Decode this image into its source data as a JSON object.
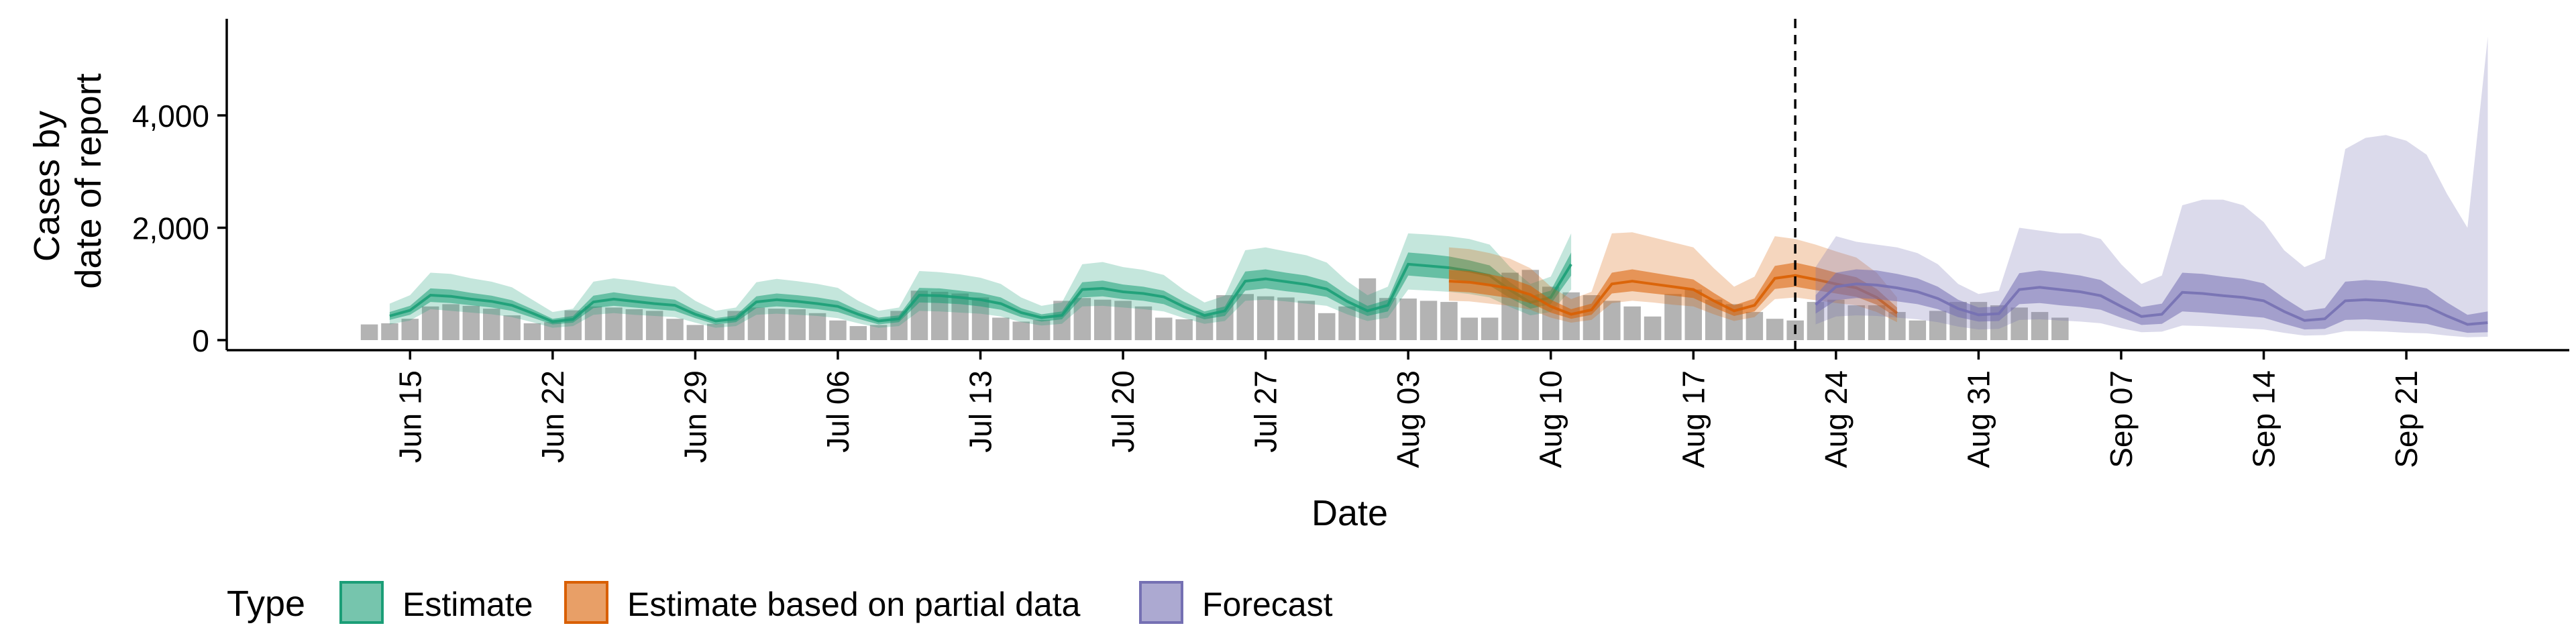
{
  "chart_data": {
    "type": "area",
    "xlabel": "Date",
    "ylabel_lines": [
      "Cases by",
      "date of report"
    ],
    "x_start": "2020-06-13",
    "x_end": "2020-09-22",
    "xlim": [
      "2020-06-06",
      "2020-09-29"
    ],
    "ylim": [
      0,
      5800
    ],
    "x_ticks": [
      {
        "date": "2020-06-15",
        "label": "Jun 15"
      },
      {
        "date": "2020-06-22",
        "label": "Jun 22"
      },
      {
        "date": "2020-06-29",
        "label": "Jun 29"
      },
      {
        "date": "2020-07-06",
        "label": "Jul 06"
      },
      {
        "date": "2020-07-13",
        "label": "Jul 13"
      },
      {
        "date": "2020-07-20",
        "label": "Jul 20"
      },
      {
        "date": "2020-07-27",
        "label": "Jul 27"
      },
      {
        "date": "2020-08-03",
        "label": "Aug 03"
      },
      {
        "date": "2020-08-10",
        "label": "Aug 10"
      },
      {
        "date": "2020-08-17",
        "label": "Aug 17"
      },
      {
        "date": "2020-08-24",
        "label": "Aug 24"
      },
      {
        "date": "2020-08-31",
        "label": "Aug 31"
      },
      {
        "date": "2020-09-07",
        "label": "Sep 07"
      },
      {
        "date": "2020-09-14",
        "label": "Sep 14"
      },
      {
        "date": "2020-09-21",
        "label": "Sep 21"
      }
    ],
    "y_ticks": [
      {
        "value": 0,
        "label": "0"
      },
      {
        "value": 2000,
        "label": "2,000"
      },
      {
        "value": 4000,
        "label": "4,000"
      }
    ],
    "forecast_start_line": "2020-08-22",
    "legend": {
      "title": "Type",
      "placement": "bottom",
      "items": [
        {
          "key": "estimate",
          "label": "Estimate",
          "color": "#1b9e77"
        },
        {
          "key": "partial",
          "label": "Estimate based on partial data",
          "color": "#d95f02"
        },
        {
          "key": "forecast",
          "label": "Forecast",
          "color": "#7570b3"
        }
      ]
    },
    "bar_color": "#b3b3b3",
    "reported_cases": [
      280,
      300,
      380,
      600,
      640,
      610,
      560,
      440,
      300,
      320,
      530,
      600,
      580,
      550,
      520,
      380,
      270,
      290,
      520,
      580,
      560,
      550,
      480,
      350,
      250,
      270,
      520,
      880,
      860,
      830,
      760,
      400,
      330,
      360,
      700,
      750,
      720,
      700,
      600,
      400,
      370,
      440,
      800,
      820,
      780,
      760,
      700,
      480,
      600,
      1100,
      750,
      740,
      700,
      680,
      400,
      400,
      1200,
      1250,
      950,
      850,
      800,
      700,
      600,
      420,
      820,
      900,
      720,
      640,
      500,
      380,
      350,
      680,
      720,
      620,
      620,
      500,
      350,
      520,
      680,
      680,
      620,
      580,
      500,
      400
    ],
    "series": [
      {
        "name": "Estimate",
        "start": "2020-06-14",
        "color": "#1b9e77",
        "median": [
          430,
          530,
          800,
          780,
          730,
          690,
          620,
          480,
          330,
          370,
          680,
          730,
          690,
          650,
          620,
          460,
          340,
          380,
          680,
          720,
          690,
          650,
          600,
          460,
          340,
          380,
          800,
          790,
          760,
          720,
          650,
          490,
          400,
          440,
          900,
          920,
          860,
          830,
          770,
          590,
          440,
          520,
          1050,
          1090,
          1040,
          990,
          910,
          690,
          520,
          620,
          1350,
          1320,
          1290,
          1230,
          1150,
          890,
          670,
          760,
          1350
        ],
        "lower50": [
          360,
          450,
          680,
          660,
          620,
          580,
          520,
          400,
          280,
          310,
          570,
          610,
          580,
          550,
          520,
          390,
          280,
          320,
          570,
          600,
          580,
          550,
          500,
          380,
          280,
          320,
          670,
          660,
          640,
          600,
          540,
          410,
          330,
          370,
          760,
          780,
          730,
          700,
          640,
          490,
          370,
          430,
          880,
          920,
          870,
          830,
          770,
          580,
          430,
          510,
          1150,
          1120,
          1090,
          1040,
          970,
          750,
          560,
          640,
          1150
        ],
        "upper50": [
          500,
          610,
          920,
          900,
          840,
          790,
          710,
          550,
          380,
          430,
          790,
          850,
          800,
          760,
          720,
          530,
          390,
          440,
          780,
          830,
          800,
          760,
          700,
          530,
          400,
          440,
          930,
          920,
          880,
          840,
          760,
          570,
          460,
          510,
          1030,
          1060,
          990,
          950,
          880,
          680,
          510,
          600,
          1220,
          1260,
          1200,
          1150,
          1050,
          800,
          610,
          720,
          1560,
          1530,
          1490,
          1420,
          1330,
          1030,
          780,
          880,
          1560
        ],
        "lower90": [
          280,
          350,
          550,
          520,
          490,
          460,
          410,
          320,
          220,
          250,
          450,
          480,
          450,
          430,
          410,
          310,
          220,
          250,
          450,
          470,
          450,
          430,
          390,
          300,
          220,
          250,
          520,
          510,
          490,
          470,
          420,
          320,
          260,
          290,
          600,
          610,
          580,
          550,
          510,
          390,
          290,
          340,
          700,
          720,
          690,
          650,
          610,
          460,
          340,
          400,
          900,
          880,
          860,
          820,
          760,
          590,
          440,
          500,
          900
        ],
        "upper90": [
          650,
          800,
          1200,
          1180,
          1100,
          1040,
          940,
          720,
          500,
          560,
          1040,
          1100,
          1060,
          1000,
          950,
          700,
          520,
          580,
          1030,
          1090,
          1050,
          1000,
          930,
          700,
          520,
          580,
          1230,
          1210,
          1170,
          1110,
          1000,
          760,
          610,
          670,
          1350,
          1390,
          1300,
          1250,
          1160,
          890,
          670,
          790,
          1600,
          1650,
          1580,
          1510,
          1380,
          1050,
          800,
          950,
          1900,
          1880,
          1850,
          1800,
          1700,
          1300,
          1000,
          1130,
          1900
        ]
      },
      {
        "name": "Estimate based on partial data",
        "start": "2020-08-05",
        "color": "#d95f02",
        "median": [
          1050,
          1030,
          980,
          920,
          810,
          600,
          460,
          540,
          1000,
          1050,
          1000,
          950,
          900,
          700,
          520,
          620,
          1100,
          1150,
          1080,
          1000,
          930,
          760,
          480
        ],
        "lower50": [
          870,
          850,
          800,
          750,
          660,
          490,
          380,
          450,
          830,
          870,
          830,
          790,
          750,
          580,
          430,
          510,
          910,
          950,
          890,
          830,
          770,
          630,
          400
        ],
        "upper50": [
          1250,
          1230,
          1170,
          1100,
          970,
          720,
          550,
          650,
          1200,
          1260,
          1200,
          1140,
          1080,
          840,
          620,
          740,
          1320,
          1380,
          1300,
          1200,
          1120,
          910,
          580
        ],
        "lower90": [
          700,
          690,
          650,
          610,
          540,
          400,
          310,
          360,
          660,
          700,
          670,
          630,
          600,
          460,
          340,
          410,
          730,
          760,
          710,
          660,
          620,
          500,
          320
        ],
        "upper90": [
          1650,
          1620,
          1550,
          1450,
          1280,
          950,
          730,
          860,
          1900,
          1920,
          1830,
          1740,
          1650,
          1280,
          950,
          1130,
          1850,
          1800,
          1700,
          1580,
          1470,
          1200,
          760
        ]
      },
      {
        "name": "Forecast",
        "start": "2020-08-23",
        "color": "#7570b3",
        "median": [
          630,
          950,
          1000,
          980,
          930,
          860,
          740,
          560,
          450,
          470,
          900,
          940,
          900,
          860,
          790,
          600,
          420,
          460,
          850,
          830,
          790,
          760,
          700,
          510,
          350,
          380,
          700,
          720,
          700,
          650,
          600,
          430,
          280,
          310
        ],
        "lower50": [
          470,
          710,
          750,
          730,
          690,
          640,
          550,
          410,
          330,
          340,
          640,
          660,
          620,
          590,
          540,
          400,
          270,
          290,
          510,
          490,
          460,
          430,
          400,
          290,
          190,
          200,
          360,
          370,
          350,
          320,
          290,
          200,
          130,
          140
        ],
        "upper50": [
          800,
          1200,
          1260,
          1240,
          1180,
          1100,
          950,
          720,
          580,
          600,
          1190,
          1240,
          1200,
          1150,
          1070,
          830,
          590,
          650,
          1200,
          1180,
          1130,
          1090,
          1010,
          750,
          520,
          570,
          1040,
          1070,
          1050,
          990,
          920,
          670,
          450,
          510
        ],
        "lower90": [
          280,
          420,
          440,
          430,
          400,
          370,
          320,
          240,
          190,
          200,
          360,
          370,
          350,
          330,
          300,
          210,
          140,
          150,
          260,
          250,
          230,
          210,
          190,
          130,
          80,
          90,
          160,
          160,
          150,
          130,
          120,
          80,
          50,
          60
        ],
        "upper90": [
          1300,
          1850,
          1750,
          1700,
          1650,
          1550,
          1350,
          1000,
          820,
          880,
          2000,
          1950,
          1900,
          1900,
          1800,
          1350,
          1000,
          1150,
          2400,
          2500,
          2500,
          2400,
          2100,
          1600,
          1300,
          1450,
          3400,
          3600,
          3650,
          3550,
          3300,
          2600,
          2000,
          5400
        ]
      }
    ]
  }
}
